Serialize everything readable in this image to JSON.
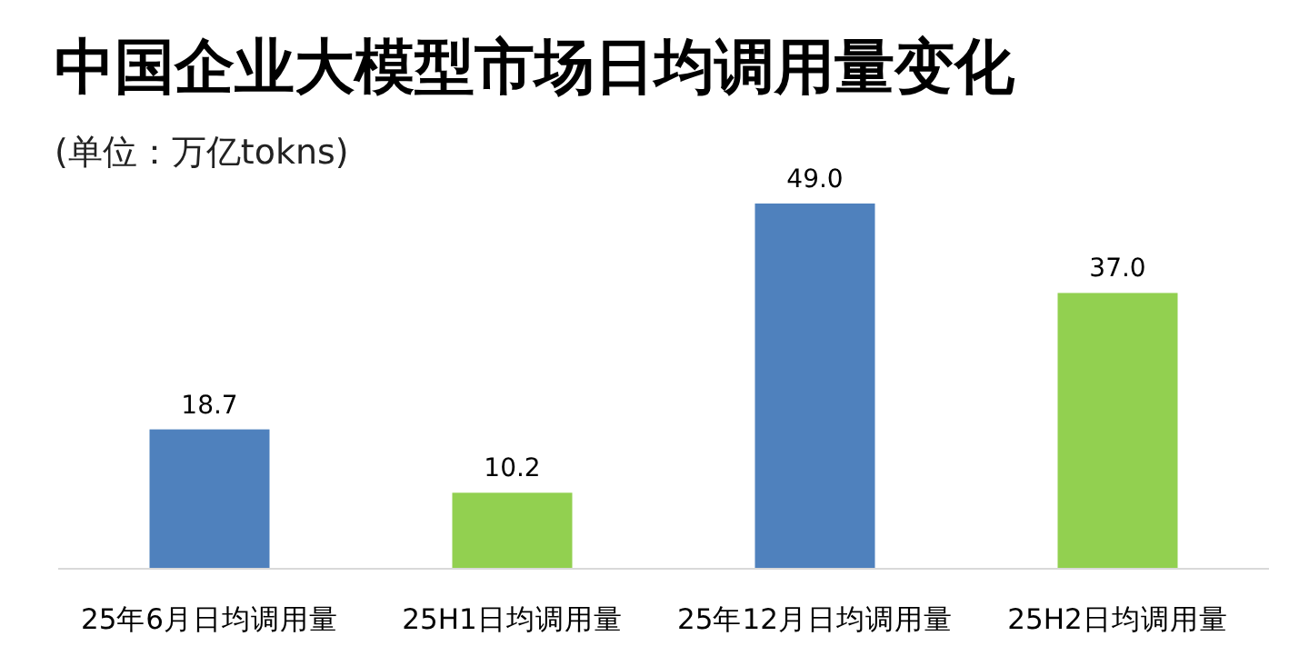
{
  "chart_data": {
    "type": "bar",
    "title": "中国企业大模型市场日均调用量变化",
    "subtitle": "(单位：万亿tokns)",
    "categories": [
      "25年6月日均调用量",
      "25H1日均调用量",
      "25年12月日均调用量",
      "25H2日均调用量"
    ],
    "values": [
      18.7,
      10.2,
      49.0,
      37.0
    ],
    "colors": [
      "#4f81bd",
      "#92d050",
      "#4f81bd",
      "#92d050"
    ],
    "value_labels": [
      "18.7",
      "10.2",
      "49.0",
      "37.0"
    ]
  }
}
